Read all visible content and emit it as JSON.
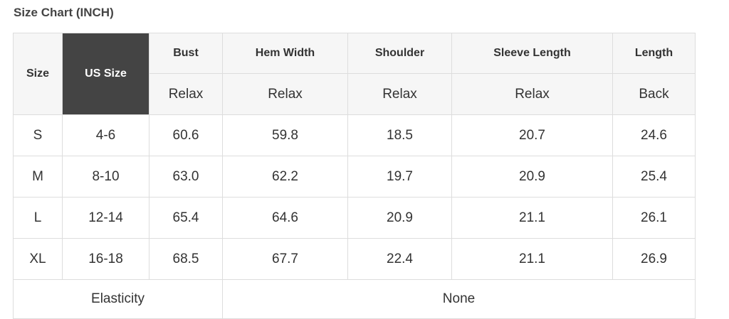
{
  "title": "Size Chart (INCH)",
  "header": {
    "size": "Size",
    "us_size": "US Size",
    "columns": [
      {
        "label": "Bust",
        "sub": "Relax"
      },
      {
        "label": "Hem Width",
        "sub": "Relax"
      },
      {
        "label": "Shoulder",
        "sub": "Relax"
      },
      {
        "label": "Sleeve Length",
        "sub": "Relax"
      },
      {
        "label": "Length",
        "sub": "Back"
      }
    ]
  },
  "rows": [
    [
      "S",
      "4-6",
      "60.6",
      "59.8",
      "18.5",
      "20.7",
      "24.6"
    ],
    [
      "M",
      "8-10",
      "63.0",
      "62.2",
      "19.7",
      "20.9",
      "25.4"
    ],
    [
      "L",
      "12-14",
      "65.4",
      "64.6",
      "20.9",
      "21.1",
      "26.1"
    ],
    [
      "XL",
      "16-18",
      "68.5",
      "67.7",
      "22.4",
      "21.1",
      "26.9"
    ]
  ],
  "footer": {
    "label": "Elasticity",
    "value": "None"
  },
  "colors": {
    "header_bg": "#f6f6f6",
    "highlight_bg": "#444444",
    "border": "#dddddd"
  }
}
